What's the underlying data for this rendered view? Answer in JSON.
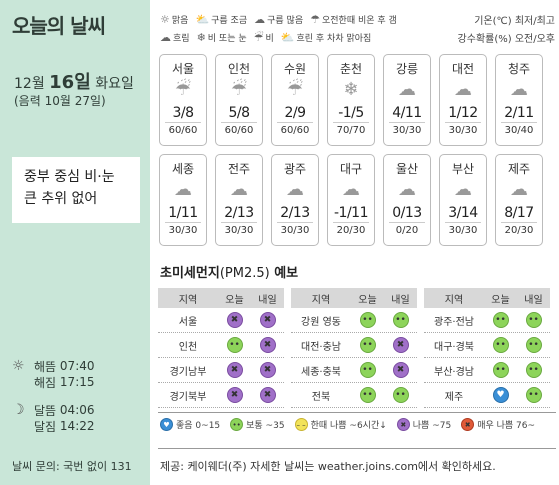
{
  "title": "오늘의 날씨",
  "date": {
    "month_label": "12월",
    "day_label": "16일",
    "weekday": "화요일",
    "lunar": "(음력 10월 27일)"
  },
  "headline": [
    "중부 중심 비·눈",
    "큰 추위 없어"
  ],
  "sun": {
    "sunrise_label": "해뜸",
    "sunrise": "07:40",
    "sunset_label": "해짐",
    "sunset": "17:15",
    "moonrise_label": "달뜸",
    "moonrise": "04:06",
    "moonset_label": "달짐",
    "moonset": "14:22"
  },
  "contact": "날씨 문의: 국번 없이 131",
  "legend_top": {
    "row1": [
      {
        "icon": "sun-icon",
        "label": "맑음"
      },
      {
        "icon": "partly-cloudy-icon",
        "label": "구름 조금"
      },
      {
        "icon": "cloudy-icon",
        "label": "구름 많음"
      },
      {
        "icon": "rain-later-icon",
        "label": "오전한때 비온 후 갬"
      }
    ],
    "row2": [
      {
        "icon": "overcast-icon",
        "label": "흐림"
      },
      {
        "icon": "rain-snow-icon",
        "label": "비 또는 눈"
      },
      {
        "icon": "rain-icon",
        "label": "비"
      },
      {
        "icon": "clearing-icon",
        "label": "흐린 후 차차 맑아짐"
      }
    ],
    "right1": "기온(℃) 최저/최고",
    "right2": "강수확률(%) 오전/오후"
  },
  "forecast": [
    {
      "city": "서울",
      "icon": "rain-icon",
      "temp": "3/8",
      "rain": "60/60"
    },
    {
      "city": "인천",
      "icon": "rain-icon",
      "temp": "5/8",
      "rain": "60/60"
    },
    {
      "city": "수원",
      "icon": "rain-icon",
      "temp": "2/9",
      "rain": "60/60"
    },
    {
      "city": "춘천",
      "icon": "rain-snow-icon",
      "temp": "-1/5",
      "rain": "70/70"
    },
    {
      "city": "강릉",
      "icon": "overcast-icon",
      "temp": "4/11",
      "rain": "30/30"
    },
    {
      "city": "대전",
      "icon": "overcast-icon",
      "temp": "1/12",
      "rain": "30/30"
    },
    {
      "city": "청주",
      "icon": "overcast-icon",
      "temp": "2/11",
      "rain": "30/40"
    },
    {
      "city": "세종",
      "icon": "overcast-icon",
      "temp": "1/11",
      "rain": "30/30"
    },
    {
      "city": "전주",
      "icon": "overcast-icon",
      "temp": "2/13",
      "rain": "30/30"
    },
    {
      "city": "광주",
      "icon": "overcast-icon",
      "temp": "2/13",
      "rain": "30/30"
    },
    {
      "city": "대구",
      "icon": "overcast-icon",
      "temp": "-1/11",
      "rain": "20/30"
    },
    {
      "city": "울산",
      "icon": "cloudy-icon",
      "temp": "0/13",
      "rain": "0/20"
    },
    {
      "city": "부산",
      "icon": "cloudy-icon",
      "temp": "3/14",
      "rain": "30/30"
    },
    {
      "city": "제주",
      "icon": "overcast-icon",
      "temp": "8/17",
      "rain": "20/30"
    }
  ],
  "dust": {
    "title": "초미세먼지",
    "title_unit": "(PM2.5)",
    "title_suffix": "예보",
    "headers": {
      "region": "지역",
      "am": "오늘",
      "pm": "내일"
    },
    "columns": [
      [
        {
          "region": "서울",
          "am": "bad",
          "pm": "bad"
        },
        {
          "region": "인천",
          "am": "normal",
          "pm": "bad"
        },
        {
          "region": "경기남부",
          "am": "bad",
          "pm": "bad"
        },
        {
          "region": "경기북부",
          "am": "bad",
          "pm": "bad"
        }
      ],
      [
        {
          "region": "강원 영동",
          "am": "normal",
          "pm": "normal"
        },
        {
          "region": "대전·충남",
          "am": "normal",
          "pm": "bad"
        },
        {
          "region": "세종·충북",
          "am": "normal",
          "pm": "bad"
        },
        {
          "region": "전북",
          "am": "normal",
          "pm": "normal"
        }
      ],
      [
        {
          "region": "광주·전남",
          "am": "normal",
          "pm": "normal"
        },
        {
          "region": "대구·경북",
          "am": "normal",
          "pm": "normal"
        },
        {
          "region": "부산·경남",
          "am": "normal",
          "pm": "normal"
        },
        {
          "region": "제주",
          "am": "good",
          "pm": "normal"
        }
      ]
    ],
    "legend": [
      {
        "level": "good",
        "label": "좋음 0~15"
      },
      {
        "level": "normal",
        "label": "보통 ~35"
      },
      {
        "level": "slight",
        "label": "한때 나쁨 ~6시간↓"
      },
      {
        "level": "bad",
        "label": "나쁨 ~75"
      },
      {
        "level": "verybad",
        "label": "매우 나쁨 76~"
      }
    ]
  },
  "source": "제공: 케이웨더(주) 자세한 날씨는 weather.joins.com에서 확인하세요.",
  "colors": {
    "sidebar": "#c9e6d8",
    "good": "#3a8fd6",
    "normal": "#8dd45a",
    "slight": "#f2e35a",
    "bad": "#a070c8",
    "verybad": "#e05a38"
  }
}
